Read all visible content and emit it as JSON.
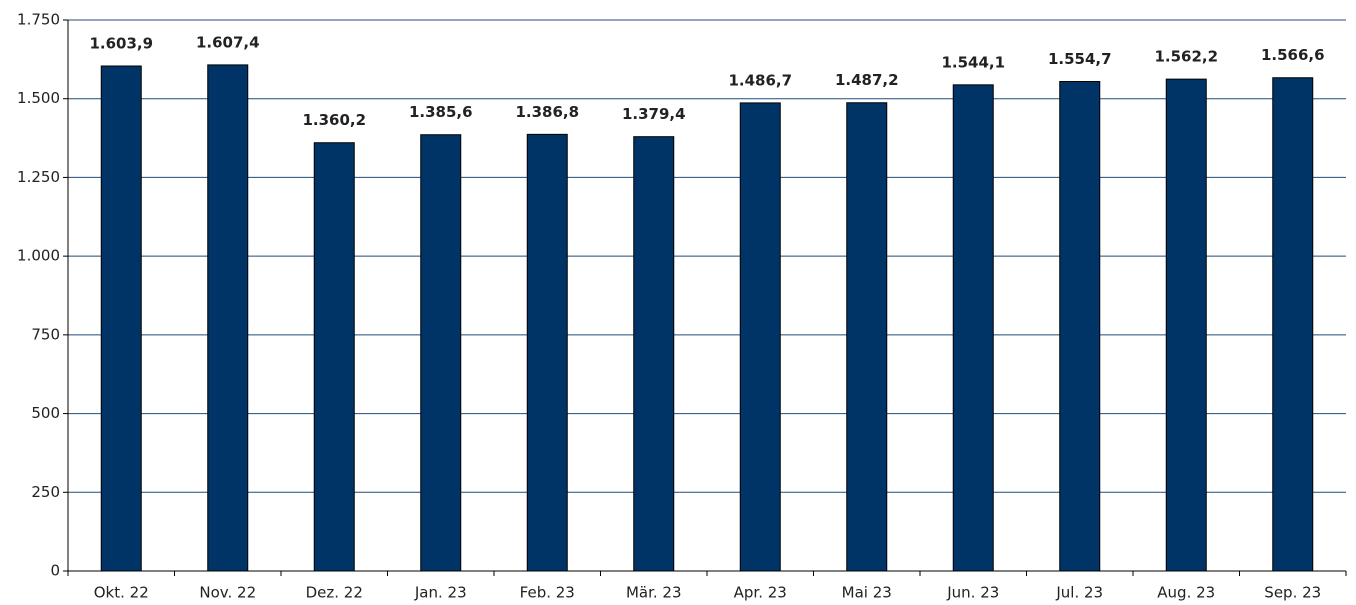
{
  "chart_data": {
    "type": "bar",
    "categories": [
      "Okt. 22",
      "Nov. 22",
      "Dez. 22",
      "Jan. 23",
      "Feb. 23",
      "Mär. 23",
      "Apr. 23",
      "Mai 23",
      "Jun. 23",
      "Jul. 23",
      "Aug. 23",
      "Sep. 23"
    ],
    "values": [
      1603.9,
      1607.4,
      1360.2,
      1385.6,
      1386.8,
      1379.4,
      1486.7,
      1487.2,
      1544.1,
      1554.7,
      1562.2,
      1566.6
    ],
    "value_labels": [
      "1.603,9",
      "1.607,4",
      "1.360,2",
      "1.385,6",
      "1.386,8",
      "1.379,4",
      "1.486,7",
      "1.487,2",
      "1.544,1",
      "1.554,7",
      "1.562,2",
      "1.566,6"
    ],
    "color": "#003366",
    "ylim": [
      0,
      1750
    ],
    "yticks": [
      0,
      250,
      500,
      750,
      {
        "value": 1000,
        "label": "1.000"
      },
      {
        "value": 1250,
        "label": "1.250"
      },
      {
        "value": 1500,
        "label": "1.500"
      },
      {
        "value": 1750,
        "label": "1.750"
      }
    ],
    "grid": true
  }
}
